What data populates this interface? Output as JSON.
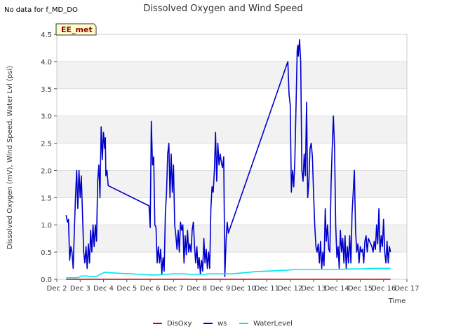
{
  "note": "No data for f_MD_DO",
  "chart_data": {
    "type": "line",
    "title": "Dissolved Oxygen and Wind Speed",
    "xlabel": "Time",
    "ylabel": "Dissolved Oxygen (mV), Wind Speed, Water Lvl (psi)",
    "badge": "EE_met",
    "xlim": [
      2,
      17
    ],
    "ylim": [
      0,
      4.5
    ],
    "grid": "horizontal bands",
    "legend_position": "bottom-center",
    "x_ticks": [
      {
        "v": 2,
        "label": "Dec 2"
      },
      {
        "v": 3,
        "label": "Dec 3"
      },
      {
        "v": 4,
        "label": "Dec 4"
      },
      {
        "v": 5,
        "label": "Dec 5"
      },
      {
        "v": 6,
        "label": "Dec 6"
      },
      {
        "v": 7,
        "label": "Dec 7"
      },
      {
        "v": 8,
        "label": "Dec 8"
      },
      {
        "v": 9,
        "label": "Dec 9"
      },
      {
        "v": 10,
        "label": "Dec 10"
      },
      {
        "v": 11,
        "label": "Dec 11"
      },
      {
        "v": 12,
        "label": "Dec 12"
      },
      {
        "v": 13,
        "label": "Dec 13"
      },
      {
        "v": 14,
        "label": "Dec 14"
      },
      {
        "v": 15,
        "label": "Dec 15"
      },
      {
        "v": 16,
        "label": "Dec 16"
      },
      {
        "v": 17,
        "label": "Dec 17"
      }
    ],
    "y_ticks": [
      {
        "v": 0,
        "label": "0.0"
      },
      {
        "v": 0.5,
        "label": "0.5"
      },
      {
        "v": 1,
        "label": "1.0"
      },
      {
        "v": 1.5,
        "label": "1.5"
      },
      {
        "v": 2,
        "label": "2.0"
      },
      {
        "v": 2.5,
        "label": "2.5"
      },
      {
        "v": 3,
        "label": "3.0"
      },
      {
        "v": 3.5,
        "label": "3.5"
      },
      {
        "v": 4,
        "label": "4.0"
      },
      {
        "v": 4.5,
        "label": "4.5"
      }
    ],
    "series": [
      {
        "name": "DisOxy",
        "color": "#cc0000",
        "points": [
          [
            2.4,
            0.0
          ],
          [
            16.3,
            0.0
          ]
        ]
      },
      {
        "name": "ws",
        "color": "#0000cc",
        "points": [
          [
            2.4,
            1.18
          ],
          [
            2.45,
            1.05
          ],
          [
            2.5,
            1.1
          ],
          [
            2.55,
            0.35
          ],
          [
            2.6,
            0.6
          ],
          [
            2.65,
            0.5
          ],
          [
            2.7,
            0.2
          ],
          [
            2.75,
            0.9
          ],
          [
            2.8,
            1.5
          ],
          [
            2.85,
            2.0
          ],
          [
            2.9,
            1.3
          ],
          [
            2.95,
            2.0
          ],
          [
            3.0,
            1.5
          ],
          [
            3.05,
            1.9
          ],
          [
            3.1,
            1.2
          ],
          [
            3.15,
            0.5
          ],
          [
            3.2,
            0.3
          ],
          [
            3.25,
            0.6
          ],
          [
            3.3,
            0.2
          ],
          [
            3.35,
            0.65
          ],
          [
            3.4,
            0.3
          ],
          [
            3.45,
            0.9
          ],
          [
            3.5,
            0.5
          ],
          [
            3.55,
            1.0
          ],
          [
            3.6,
            0.6
          ],
          [
            3.65,
            1.0
          ],
          [
            3.7,
            0.7
          ],
          [
            3.75,
            1.8
          ],
          [
            3.8,
            2.1
          ],
          [
            3.85,
            1.5
          ],
          [
            3.9,
            2.8
          ],
          [
            3.95,
            2.2
          ],
          [
            4.0,
            2.7
          ],
          [
            4.05,
            2.4
          ],
          [
            4.08,
            2.6
          ],
          [
            4.1,
            1.9
          ],
          [
            4.15,
            2.0
          ],
          [
            4.2,
            1.72
          ],
          [
            5.95,
            1.35
          ],
          [
            6.0,
            0.95
          ],
          [
            6.05,
            2.9
          ],
          [
            6.1,
            2.1
          ],
          [
            6.15,
            2.25
          ],
          [
            6.2,
            1.0
          ],
          [
            6.25,
            0.95
          ],
          [
            6.3,
            0.3
          ],
          [
            6.35,
            0.6
          ],
          [
            6.4,
            0.3
          ],
          [
            6.45,
            0.55
          ],
          [
            6.5,
            0.1
          ],
          [
            6.55,
            0.4
          ],
          [
            6.6,
            0.15
          ],
          [
            6.65,
            1.2
          ],
          [
            6.7,
            1.6
          ],
          [
            6.75,
            2.3
          ],
          [
            6.8,
            2.5
          ],
          [
            6.85,
            1.5
          ],
          [
            6.9,
            2.3
          ],
          [
            6.95,
            1.6
          ],
          [
            7.0,
            2.1
          ],
          [
            7.05,
            1.0
          ],
          [
            7.1,
            0.8
          ],
          [
            7.15,
            0.55
          ],
          [
            7.2,
            0.9
          ],
          [
            7.25,
            0.5
          ],
          [
            7.3,
            1.05
          ],
          [
            7.35,
            0.9
          ],
          [
            7.4,
            1.0
          ],
          [
            7.45,
            0.3
          ],
          [
            7.5,
            0.8
          ],
          [
            7.55,
            0.45
          ],
          [
            7.6,
            0.9
          ],
          [
            7.65,
            0.5
          ],
          [
            7.7,
            0.65
          ],
          [
            7.75,
            0.5
          ],
          [
            7.8,
            0.9
          ],
          [
            7.85,
            1.05
          ],
          [
            7.9,
            0.6
          ],
          [
            7.95,
            0.3
          ],
          [
            8.0,
            0.6
          ],
          [
            8.05,
            0.2
          ],
          [
            8.1,
            0.4
          ],
          [
            8.15,
            0.1
          ],
          [
            8.2,
            0.35
          ],
          [
            8.25,
            0.15
          ],
          [
            8.3,
            0.75
          ],
          [
            8.35,
            0.3
          ],
          [
            8.4,
            0.55
          ],
          [
            8.45,
            0.2
          ],
          [
            8.5,
            0.5
          ],
          [
            8.55,
            0.2
          ],
          [
            8.6,
            1.3
          ],
          [
            8.65,
            1.7
          ],
          [
            8.7,
            1.6
          ],
          [
            8.75,
            2.0
          ],
          [
            8.8,
            2.7
          ],
          [
            8.85,
            1.8
          ],
          [
            8.9,
            2.5
          ],
          [
            8.95,
            2.1
          ],
          [
            9.0,
            2.3
          ],
          [
            9.05,
            2.15
          ],
          [
            9.1,
            2.05
          ],
          [
            9.15,
            2.25
          ],
          [
            9.2,
            0.05
          ],
          [
            9.25,
            0.7
          ],
          [
            9.3,
            1.05
          ],
          [
            9.35,
            0.85
          ],
          [
            11.9,
            4.0
          ],
          [
            11.95,
            3.4
          ],
          [
            12.0,
            3.2
          ],
          [
            12.05,
            1.6
          ],
          [
            12.1,
            2.0
          ],
          [
            12.15,
            1.7
          ],
          [
            12.2,
            2.2
          ],
          [
            12.25,
            3.2
          ],
          [
            12.3,
            4.2
          ],
          [
            12.33,
            4.3
          ],
          [
            12.35,
            4.1
          ],
          [
            12.4,
            4.4
          ],
          [
            12.45,
            4.0
          ],
          [
            12.5,
            2.0
          ],
          [
            12.55,
            1.8
          ],
          [
            12.6,
            2.3
          ],
          [
            12.65,
            1.9
          ],
          [
            12.7,
            3.25
          ],
          [
            12.75,
            1.5
          ],
          [
            12.8,
            1.8
          ],
          [
            12.85,
            2.4
          ],
          [
            12.9,
            2.5
          ],
          [
            12.95,
            2.25
          ],
          [
            13.0,
            1.6
          ],
          [
            13.05,
            1.0
          ],
          [
            13.1,
            0.6
          ],
          [
            13.15,
            0.5
          ],
          [
            13.2,
            0.65
          ],
          [
            13.25,
            0.3
          ],
          [
            13.3,
            0.7
          ],
          [
            13.35,
            0.2
          ],
          [
            13.4,
            0.5
          ],
          [
            13.45,
            0.25
          ],
          [
            13.5,
            1.3
          ],
          [
            13.55,
            0.7
          ],
          [
            13.6,
            1.0
          ],
          [
            13.65,
            0.55
          ],
          [
            13.7,
            0.5
          ],
          [
            13.75,
            1.75
          ],
          [
            13.8,
            2.4
          ],
          [
            13.85,
            3.0
          ],
          [
            13.9,
            2.4
          ],
          [
            13.95,
            1.0
          ],
          [
            14.0,
            0.4
          ],
          [
            14.05,
            0.6
          ],
          [
            14.1,
            0.2
          ],
          [
            14.15,
            0.9
          ],
          [
            14.2,
            0.5
          ],
          [
            14.25,
            0.75
          ],
          [
            14.3,
            0.3
          ],
          [
            14.35,
            0.8
          ],
          [
            14.4,
            0.2
          ],
          [
            14.45,
            0.6
          ],
          [
            14.5,
            0.3
          ],
          [
            14.55,
            0.8
          ],
          [
            14.6,
            0.3
          ],
          [
            14.65,
            1.2
          ],
          [
            14.7,
            1.6
          ],
          [
            14.75,
            2.0
          ],
          [
            14.8,
            0.9
          ],
          [
            14.85,
            0.5
          ],
          [
            14.9,
            0.65
          ],
          [
            14.95,
            0.3
          ],
          [
            15.0,
            0.6
          ],
          [
            15.05,
            0.5
          ],
          [
            15.1,
            0.55
          ],
          [
            15.15,
            0.3
          ],
          [
            15.2,
            0.7
          ],
          [
            15.25,
            0.8
          ],
          [
            15.3,
            0.5
          ],
          [
            15.35,
            0.75
          ],
          [
            15.4,
            0.7
          ],
          [
            15.45,
            0.65
          ],
          [
            15.5,
            0.6
          ],
          [
            15.55,
            0.5
          ],
          [
            15.6,
            0.7
          ],
          [
            15.65,
            0.55
          ],
          [
            15.7,
            1.0
          ],
          [
            15.75,
            0.65
          ],
          [
            15.8,
            1.3
          ],
          [
            15.85,
            0.5
          ],
          [
            15.9,
            0.8
          ],
          [
            15.95,
            0.6
          ],
          [
            16.0,
            1.1
          ],
          [
            16.05,
            0.5
          ],
          [
            16.1,
            0.3
          ],
          [
            16.15,
            0.7
          ],
          [
            16.2,
            0.3
          ],
          [
            16.25,
            0.6
          ],
          [
            16.3,
            0.5
          ]
        ]
      },
      {
        "name": "WaterLevel",
        "color": "#00e5ee",
        "points": [
          [
            2.4,
            0.03
          ],
          [
            2.9,
            0.03
          ],
          [
            3.05,
            0.06
          ],
          [
            3.3,
            0.06
          ],
          [
            3.5,
            0.05
          ],
          [
            3.7,
            0.05
          ],
          [
            3.8,
            0.08
          ],
          [
            3.9,
            0.1
          ],
          [
            4.0,
            0.12
          ],
          [
            4.1,
            0.13
          ],
          [
            4.3,
            0.12
          ],
          [
            4.7,
            0.11
          ],
          [
            5.2,
            0.1
          ],
          [
            5.6,
            0.09
          ],
          [
            6.0,
            0.08
          ],
          [
            6.3,
            0.08
          ],
          [
            6.6,
            0.09
          ],
          [
            7.0,
            0.1
          ],
          [
            7.5,
            0.1
          ],
          [
            7.7,
            0.09
          ],
          [
            8.0,
            0.09
          ],
          [
            8.3,
            0.09
          ],
          [
            8.5,
            0.1
          ],
          [
            8.8,
            0.1
          ],
          [
            9.2,
            0.1
          ],
          [
            9.5,
            0.1
          ],
          [
            10.0,
            0.12
          ],
          [
            10.5,
            0.14
          ],
          [
            11.0,
            0.15
          ],
          [
            11.5,
            0.16
          ],
          [
            11.9,
            0.17
          ],
          [
            12.2,
            0.18
          ],
          [
            12.8,
            0.18
          ],
          [
            13.4,
            0.18
          ],
          [
            14.0,
            0.18
          ],
          [
            14.6,
            0.19
          ],
          [
            15.0,
            0.19
          ],
          [
            15.5,
            0.2
          ],
          [
            16.0,
            0.2
          ],
          [
            16.3,
            0.2
          ]
        ]
      }
    ]
  }
}
